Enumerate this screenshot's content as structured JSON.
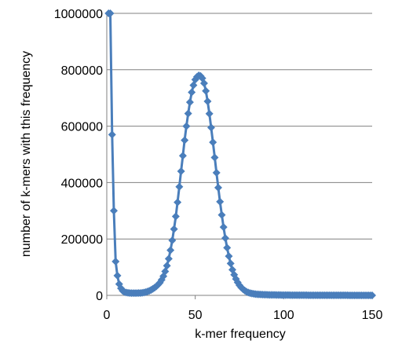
{
  "chart_data": {
    "type": "line",
    "title": "",
    "xlabel": "k-mer frequency",
    "ylabel": "number of k-mers with this frequency",
    "xlim": [
      0,
      150
    ],
    "ylim": [
      0,
      1000000
    ],
    "x_ticks": [
      "0",
      "50",
      "100",
      "150"
    ],
    "y_ticks": [
      "0",
      "200000",
      "400000",
      "600000",
      "800000",
      "1000000"
    ],
    "grid": "horizontal",
    "legend": "none",
    "marker": "diamond",
    "color": "#4a7ebb",
    "series": [
      {
        "x": [
          1,
          2,
          3,
          4,
          5,
          6,
          7,
          8,
          9,
          10,
          11,
          12,
          13,
          14,
          15,
          16,
          17,
          18,
          19,
          20,
          21,
          22,
          23,
          24,
          25,
          26,
          27,
          28,
          29,
          30,
          31,
          32,
          33,
          34,
          35,
          36,
          37,
          38,
          39,
          40,
          41,
          42,
          43,
          44,
          45,
          46,
          47,
          48,
          49,
          50,
          51,
          52,
          53,
          54,
          55,
          56,
          57,
          58,
          59,
          60,
          61,
          62,
          63,
          64,
          65,
          66,
          67,
          68,
          69,
          70,
          71,
          72,
          73,
          74,
          75,
          76,
          77,
          78,
          79,
          80,
          81,
          82,
          83,
          84,
          85,
          86,
          87,
          88,
          89,
          90,
          91,
          92,
          93,
          94,
          95,
          96,
          97,
          98,
          99,
          100,
          101,
          102,
          103,
          104,
          105,
          106,
          107,
          108,
          109,
          110,
          111,
          112,
          113,
          114,
          115,
          116,
          117,
          118,
          119,
          120,
          121,
          122,
          123,
          124,
          125,
          126,
          127,
          128,
          129,
          130,
          131,
          132,
          133,
          134,
          135,
          136,
          137,
          138,
          139,
          140,
          141,
          142,
          143,
          144,
          145,
          146,
          147,
          148,
          149,
          150
        ],
        "y": [
          1000000,
          1000000,
          570000,
          300000,
          120000,
          70000,
          40000,
          25000,
          16000,
          12000,
          10000,
          9000,
          8500,
          8000,
          8000,
          8000,
          8000,
          8200,
          8500,
          9000,
          10000,
          11500,
          13500,
          16000,
          19000,
          23000,
          27000,
          32000,
          38000,
          45000,
          55000,
          68000,
          85000,
          105000,
          130000,
          160000,
          195000,
          235000,
          280000,
          330000,
          385000,
          440000,
          495000,
          550000,
          600000,
          645000,
          685000,
          720000,
          745000,
          765000,
          775000,
          780000,
          778000,
          770000,
          752000,
          725000,
          688000,
          644000,
          595000,
          543000,
          489000,
          435000,
          382000,
          332000,
          285000,
          242000,
          203000,
          169000,
          139000,
          113000,
          91000,
          73000,
          58000,
          46000,
          36000,
          28000,
          22000,
          17000,
          13000,
          10000,
          8000,
          6500,
          5400,
          4600,
          4000,
          3500,
          3100,
          2800,
          2500,
          2300,
          2100,
          1900,
          1800,
          1700,
          1600,
          1500,
          1400,
          1300,
          1200,
          1100,
          1000,
          950,
          900,
          850,
          800,
          760,
          720,
          680,
          650,
          620,
          590,
          560,
          530,
          500,
          480,
          460,
          440,
          420,
          400,
          380,
          360,
          340,
          320,
          300,
          290,
          280,
          270,
          260,
          250,
          240,
          230,
          220,
          210,
          200,
          190,
          180,
          170,
          160,
          150,
          140,
          130,
          120,
          110,
          100,
          95,
          90,
          85,
          80,
          75,
          70
        ]
      }
    ]
  }
}
